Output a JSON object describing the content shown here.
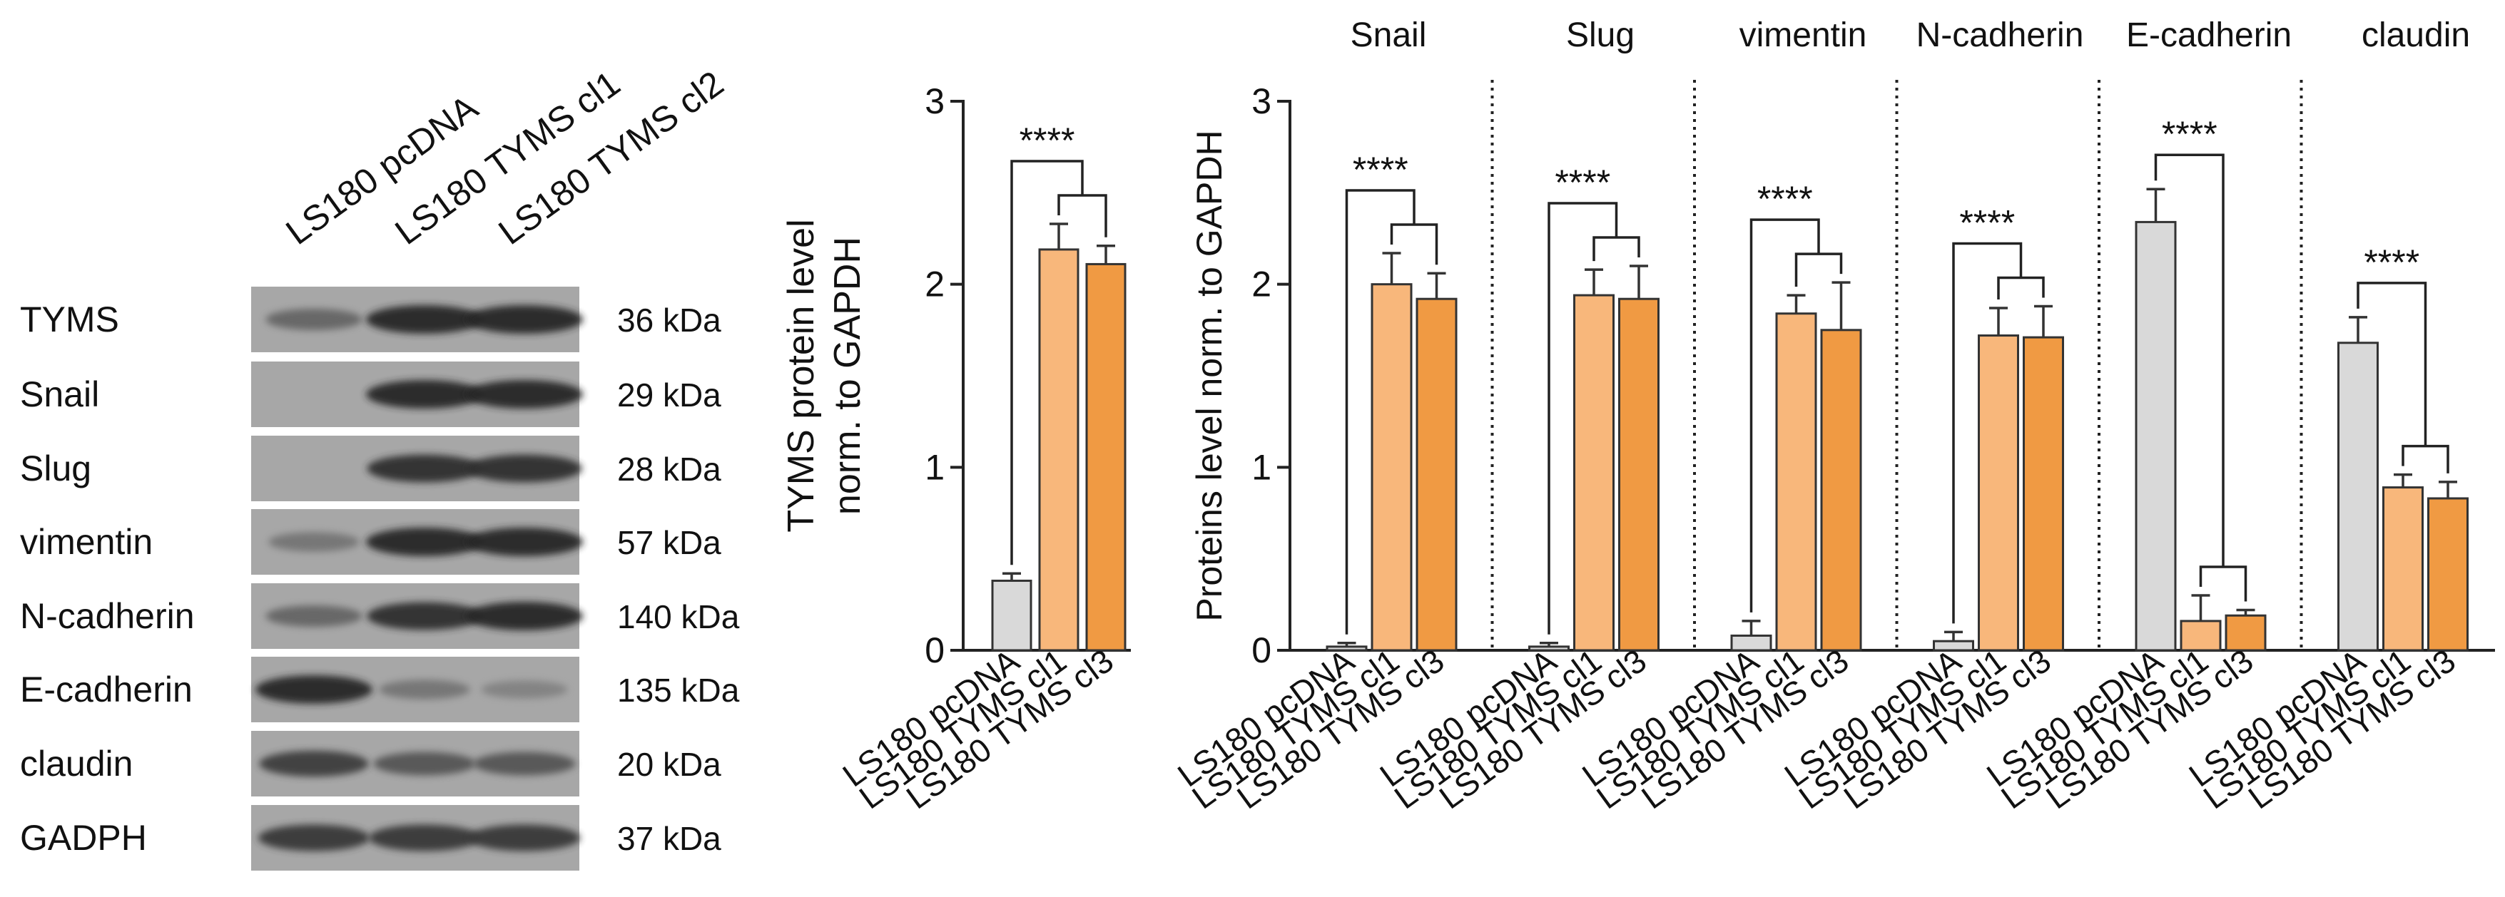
{
  "western_blot": {
    "lanes": [
      "LS180 pcDNA",
      "LS180 TYMS cl1",
      "LS180 TYMS cl2"
    ],
    "rows": [
      {
        "protein": "TYMS",
        "kda": "36 kDa",
        "intensity": [
          0.45,
          1.0,
          1.0
        ]
      },
      {
        "protein": "Snail",
        "kda": "29 kDa",
        "intensity": [
          0.0,
          1.0,
          1.0
        ]
      },
      {
        "protein": "Slug",
        "kda": "28 kDa",
        "intensity": [
          0.0,
          0.95,
          0.95
        ]
      },
      {
        "protein": "vimentin",
        "kda": "57 kDa",
        "intensity": [
          0.3,
          1.0,
          1.0
        ]
      },
      {
        "protein": "N-cadherin",
        "kda": "140 kDa",
        "intensity": [
          0.45,
          0.95,
          1.0
        ]
      },
      {
        "protein": "E-cadherin",
        "kda": "135 kDa",
        "intensity": [
          1.0,
          0.3,
          0.18
        ]
      },
      {
        "protein": "claudin",
        "kda": "20 kDa",
        "intensity": [
          0.8,
          0.6,
          0.6
        ]
      },
      {
        "protein": "GADPH",
        "kda": "37 kDa",
        "intensity": [
          0.85,
          0.85,
          0.85
        ]
      }
    ]
  },
  "colors": {
    "pcdna": "#d9d9d9",
    "cl1": "#f8b77b",
    "cl3": "#f09a43",
    "edge": "#333333"
  },
  "chart_data": [
    {
      "type": "bar",
      "id": "tyms",
      "ylabel_lines": [
        "TYMS protein level",
        "norm. to GAPDH"
      ],
      "ylim": [
        0,
        3
      ],
      "yticks": [
        "0",
        "1",
        "2",
        "3"
      ],
      "categories": [
        "LS180 pcDNA",
        "LS180 TYMS cl1",
        "LS180 TYMS cl3"
      ],
      "values": [
        0.38,
        2.19,
        2.11
      ],
      "errors": [
        0.04,
        0.14,
        0.1
      ],
      "significance": "****"
    },
    {
      "type": "bar",
      "id": "markers",
      "ylabel": "Proteins level norm. to GAPDH",
      "ylim": [
        0,
        3
      ],
      "yticks": [
        "0",
        "1",
        "2",
        "3"
      ],
      "categories": [
        "LS180 pcDNA",
        "LS180 TYMS cl1",
        "LS180 TYMS cl3"
      ],
      "groups": [
        {
          "name": "Snail",
          "values": [
            0.02,
            2.0,
            1.92
          ],
          "errors": [
            0.02,
            0.17,
            0.14
          ],
          "significance": "****"
        },
        {
          "name": "Slug",
          "values": [
            0.02,
            1.94,
            1.92
          ],
          "errors": [
            0.02,
            0.14,
            0.18
          ],
          "significance": "****"
        },
        {
          "name": "vimentin",
          "values": [
            0.08,
            1.84,
            1.75
          ],
          "errors": [
            0.08,
            0.1,
            0.26
          ],
          "significance": "****"
        },
        {
          "name": "N-cadherin",
          "values": [
            0.05,
            1.72,
            1.71
          ],
          "errors": [
            0.05,
            0.15,
            0.17
          ],
          "significance": "****"
        },
        {
          "name": "E-cadherin",
          "values": [
            2.34,
            0.16,
            0.19
          ],
          "errors": [
            0.18,
            0.14,
            0.03
          ],
          "significance": "****"
        },
        {
          "name": "claudin",
          "values": [
            1.68,
            0.89,
            0.83
          ],
          "errors": [
            0.14,
            0.07,
            0.09
          ],
          "significance": "****"
        }
      ]
    }
  ]
}
